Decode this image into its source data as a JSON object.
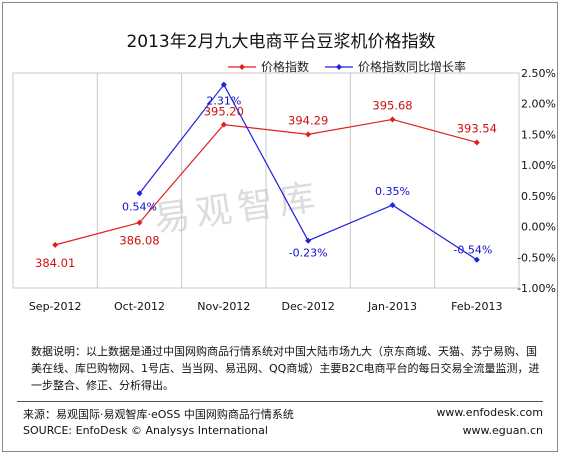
{
  "chart_data": {
    "type": "line",
    "title": "2013年2月九大电商平台豆浆机价格指数",
    "categories": [
      "Sep-2012",
      "Oct-2012",
      "Nov-2012",
      "Dec-2012",
      "Jan-2013",
      "Feb-2013"
    ],
    "series": [
      {
        "name": "价格指数",
        "axis": "left",
        "color": "#e02020",
        "values": [
          384.01,
          386.08,
          395.2,
          394.29,
          395.68,
          393.54
        ],
        "labels": [
          "384.01",
          "386.08",
          "395.20",
          "394.29",
          "395.68",
          "393.54"
        ]
      },
      {
        "name": "价格指数同比增长率",
        "axis": "right",
        "color": "#2020e0",
        "values": [
          null,
          0.54,
          2.31,
          -0.23,
          0.35,
          -0.54
        ],
        "labels": [
          "",
          "0.54%",
          "2.31%",
          "-0.23%",
          "0.35%",
          "-0.54%"
        ]
      }
    ],
    "y2_ticks": [
      "2.50%",
      "2.00%",
      "1.50%",
      "1.00%",
      "0.50%",
      "0.00%",
      "-0.50%",
      "-1.00%"
    ],
    "y2lim": [
      -1.0,
      2.5
    ],
    "legend": "top",
    "watermark": "易观智库"
  },
  "note": "数据说明：以上数据是通过中国网购商品行情系统对中国大陆市场九大（京东商城、天猫、苏宁易购、国美在线、库巴购物网、1号店、当当网、易迅网、QQ商城）主要B2C电商平台的每日交易全流量监测，进一步整合、修正、分析得出。",
  "footer": {
    "source_cn": "来源：易观国际·易观智库·eOSS 中国网购商品行情系统",
    "source_en": "SOURCE: EnfoDesk © Analysys International",
    "url1": "www.enfodesk.com",
    "url2": "www.eguan.cn"
  }
}
